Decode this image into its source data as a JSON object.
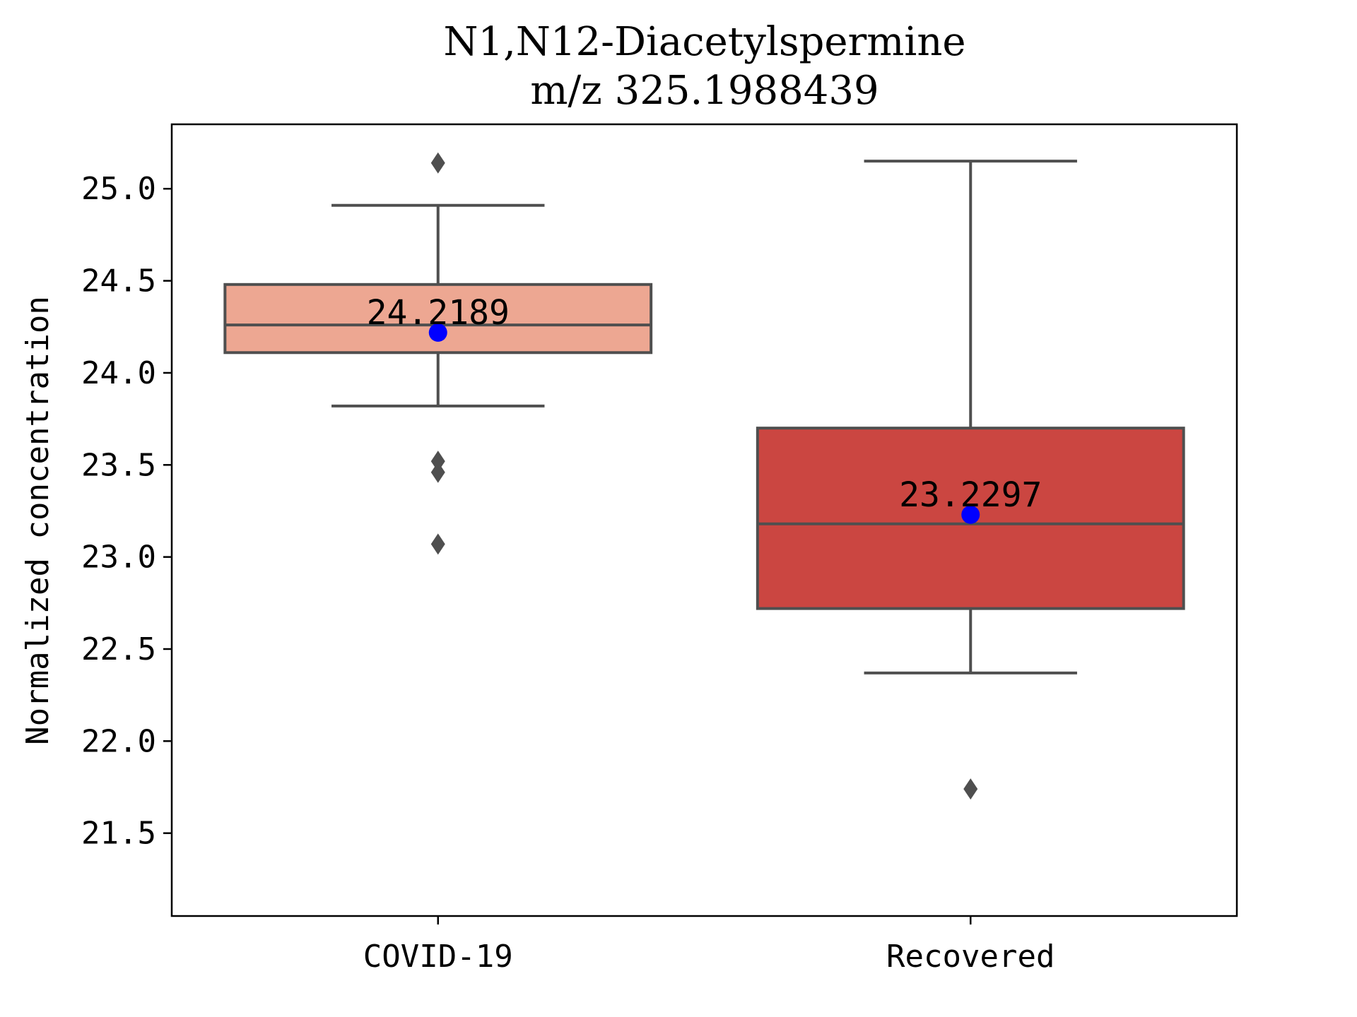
{
  "chart_data": {
    "type": "box",
    "title_line1": "N1,N12-Diacetylspermine",
    "title_line2": "m/z  325.1988439",
    "xlabel": "",
    "ylabel": "Normalized concentration",
    "ylim": [
      21.05,
      25.35
    ],
    "yticks": [
      "21.5",
      "22.0",
      "22.5",
      "23.0",
      "23.5",
      "24.0",
      "24.5",
      "25.0"
    ],
    "grid": false,
    "categories": [
      "COVID-19",
      "Recovered"
    ],
    "boxes": [
      {
        "category": "COVID-19",
        "color": "#EDA792",
        "whisker_low": 23.82,
        "q1": 24.11,
        "median": 24.26,
        "q3": 24.48,
        "whisker_high": 24.91,
        "outliers": [
          25.14,
          23.52,
          23.46,
          23.07
        ],
        "mean": 24.2189,
        "mean_label": "24.2189"
      },
      {
        "category": "Recovered",
        "color": "#CB4641",
        "whisker_low": 22.37,
        "q1": 22.72,
        "median": 23.18,
        "q3": 23.7,
        "whisker_high": 25.15,
        "outliers": [
          21.74
        ],
        "mean": 23.2297,
        "mean_label": "23.2297"
      }
    ],
    "mean_marker_color": "#0000FF",
    "line_color": "#4F4F4F"
  }
}
